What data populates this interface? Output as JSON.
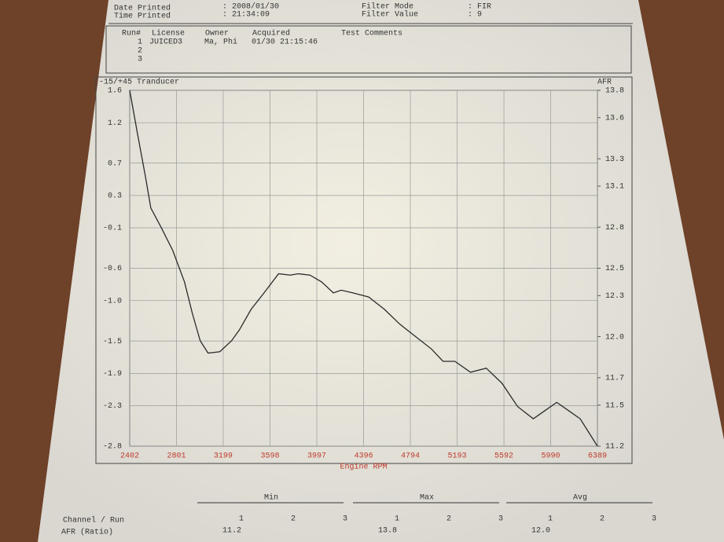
{
  "header": {
    "date_label": "Date Printed",
    "date_value": ": 2008/01/30",
    "time_label": "Time Printed",
    "time_value": ": 21:34:09",
    "filter_mode_label": "Filter Mode",
    "filter_mode_value": ": FIR",
    "filter_value_label": "Filter Value",
    "filter_value_value": ": 9"
  },
  "runs": {
    "columns": [
      "Run#",
      "License",
      "Owner",
      "Acquired",
      "Test Comments"
    ],
    "rows": [
      [
        "1",
        "JUICED3",
        "Ma, Phi",
        "01/30 21:15:46"
      ],
      [
        "2"
      ],
      [
        "3"
      ]
    ]
  },
  "chart_data": {
    "type": "line",
    "y_label": "-15/+45 Tranducer",
    "y2_label": "AFR",
    "x_label": "Engine RPM",
    "xlim": [
      2402,
      6389
    ],
    "xticks": [
      2402,
      2801,
      3199,
      3598,
      3997,
      4396,
      4794,
      5193,
      5592,
      5990,
      6389
    ],
    "ylim": [
      -2.8,
      1.6
    ],
    "yticks": [
      1.6,
      1.2,
      0.7,
      0.3,
      -0.1,
      -0.6,
      {
        "value": -1,
        "label": "-1.0"
      },
      -1.5,
      -1.9,
      -2.3,
      -2.8
    ],
    "y2lim": [
      11.2,
      13.8
    ],
    "y2ticks": [
      13.8,
      13.6,
      13.3,
      13.1,
      12.8,
      12.5,
      12.3,
      {
        "value": 12,
        "label": "12.0"
      },
      11.7,
      11.5,
      11.2
    ],
    "grid": true,
    "x": [
      2402,
      2469,
      2536,
      2582,
      2669,
      2769,
      2869,
      2936,
      3003,
      3070,
      3170,
      3270,
      3337,
      3437,
      3538,
      3671,
      3771,
      3838,
      3938,
      4038,
      4138,
      4205,
      4305,
      4439,
      4573,
      4706,
      4840,
      4974,
      5073,
      5174,
      5307,
      5441,
      5575,
      5708,
      5842,
      5942,
      6042,
      6142,
      6242,
      6389
    ],
    "series": [
      {
        "name": "AFR",
        "color": "#2a2a2a",
        "axis": "y2",
        "values": [
          13.8,
          13.48,
          13.17,
          12.94,
          12.8,
          12.63,
          12.4,
          12.17,
          11.97,
          11.88,
          11.89,
          11.97,
          12.05,
          12.2,
          12.31,
          12.46,
          12.45,
          12.46,
          12.45,
          12.4,
          12.32,
          12.34,
          12.32,
          12.29,
          12.2,
          12.09,
          12.0,
          11.91,
          11.82,
          11.82,
          11.74,
          11.77,
          11.66,
          11.49,
          11.4,
          11.46,
          11.52,
          11.46,
          11.4,
          11.2
        ]
      }
    ]
  },
  "summary": {
    "columns": [
      "Min",
      "Max",
      "Avg"
    ],
    "runs": [
      "1",
      "2",
      "3"
    ],
    "row_label": "Channel / Run",
    "channel": "AFR (Ratio)",
    "values": [
      "11.2",
      "13.8",
      "12.0"
    ]
  }
}
